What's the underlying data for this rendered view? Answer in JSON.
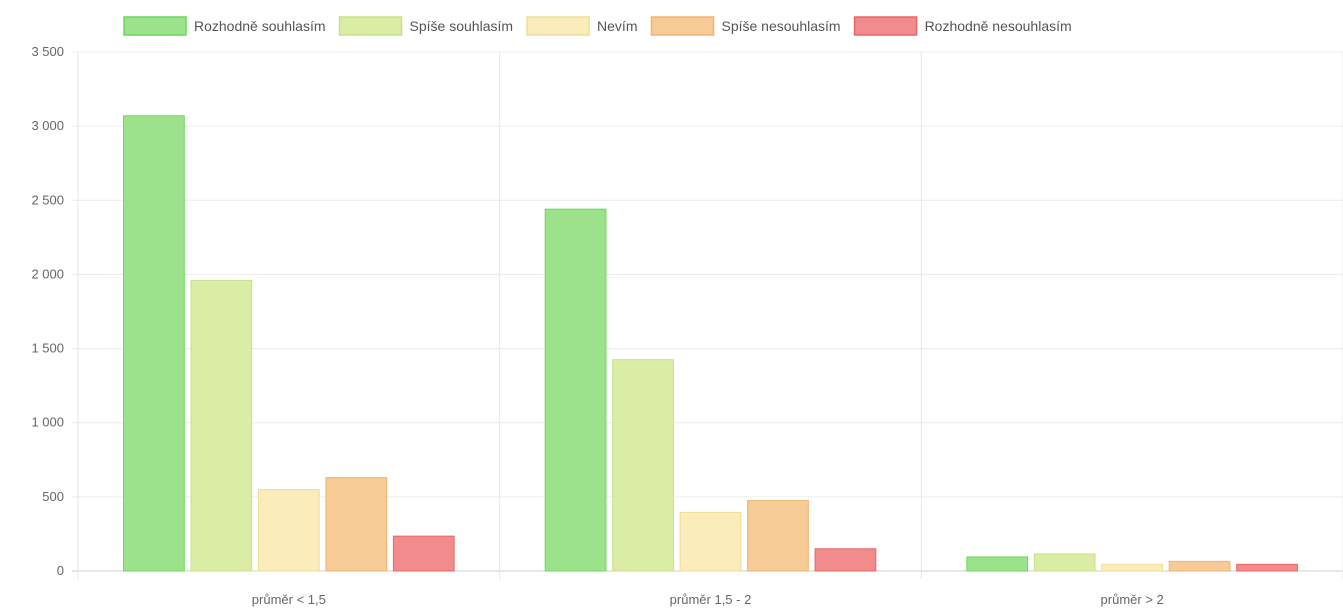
{
  "chart_data": {
    "type": "bar",
    "categories": [
      "průměr < 1,5",
      "průměr 1,5 - 2",
      "průměr > 2"
    ],
    "series": [
      {
        "name": "Rozhodně souhlasím",
        "values": [
          3070,
          2440,
          95
        ],
        "color": "#9be28a",
        "border": "#6cd85a"
      },
      {
        "name": "Spíše souhlasím",
        "values": [
          1960,
          1425,
          115
        ],
        "color": "#dbeca5",
        "border": "#c9e08a"
      },
      {
        "name": "Nevím",
        "values": [
          550,
          395,
          45
        ],
        "color": "#faecbb",
        "border": "#f3dd95"
      },
      {
        "name": "Spíše nesouhlasím",
        "values": [
          630,
          475,
          65
        ],
        "color": "#f6cb95",
        "border": "#eeb56f"
      },
      {
        "name": "Rozhodně nesouhlasím",
        "values": [
          235,
          150,
          45
        ],
        "color": "#f28c8c",
        "border": "#e86666"
      }
    ],
    "yticks": [
      "0",
      "500",
      "1 000",
      "1 500",
      "2 000",
      "2 500",
      "3 000",
      "3 500"
    ],
    "ylim": [
      0,
      3500
    ],
    "legend_position": "top",
    "grid": true
  }
}
